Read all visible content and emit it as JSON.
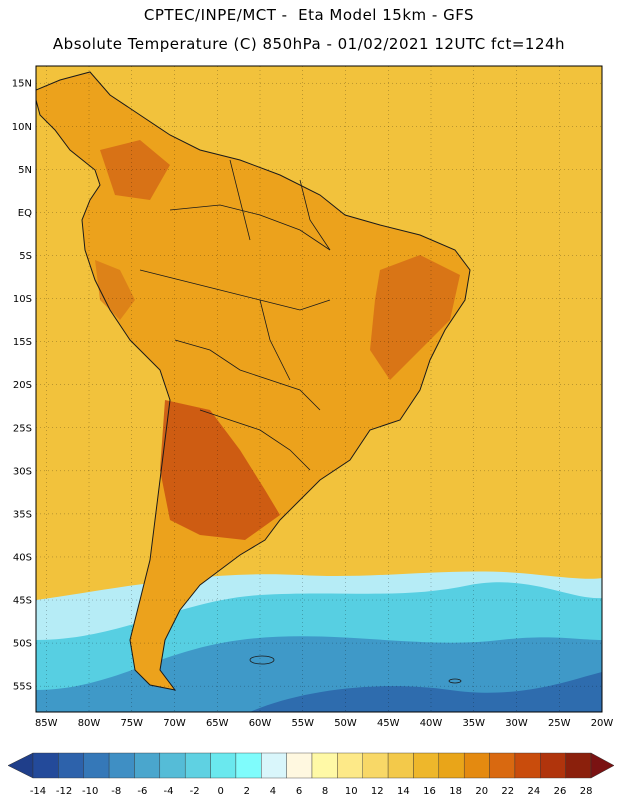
{
  "header": {
    "line1": "CPTEC/INPE/MCT -  Eta Model 15km - GFS",
    "line2": "Absolute Temperature (C) 850hPa - 01/02/2021 12UTC fct=124h"
  },
  "map": {
    "lat_labels": [
      "15N",
      "10N",
      "5N",
      "EQ",
      "5S",
      "10S",
      "15S",
      "20S",
      "25S",
      "30S",
      "35S",
      "40S",
      "45S",
      "50S",
      "55S"
    ],
    "lon_labels": [
      "85W",
      "80W",
      "75W",
      "70W",
      "65W",
      "60W",
      "55W",
      "50W",
      "45W",
      "40W",
      "35W",
      "30W",
      "25W",
      "20W"
    ],
    "ocean_color": "#f2c23c",
    "land_color": "#eca21c"
  },
  "legend": {
    "labels": [
      "-14",
      "-12",
      "-10",
      "-8",
      "-6",
      "-4",
      "-2",
      "0",
      "2",
      "4",
      "6",
      "8",
      "10",
      "12",
      "14",
      "16",
      "18",
      "20",
      "22",
      "24",
      "26",
      "28"
    ],
    "colors": [
      "#234a9a",
      "#2d62ab",
      "#3578b8",
      "#3f8fc4",
      "#4aa6cd",
      "#55bcd7",
      "#5fd1e2",
      "#6ae8ee",
      "#7ffcfc",
      "#d9f6fb",
      "#fff8e0",
      "#fff9a6",
      "#fde988",
      "#f8d867",
      "#f3c94a",
      "#eeb72b",
      "#e9a519",
      "#e48a10",
      "#d96910",
      "#c94c0c",
      "#b0340c",
      "#8b200c"
    ],
    "under_color": "#1f3e8a",
    "over_color": "#7a1212"
  }
}
